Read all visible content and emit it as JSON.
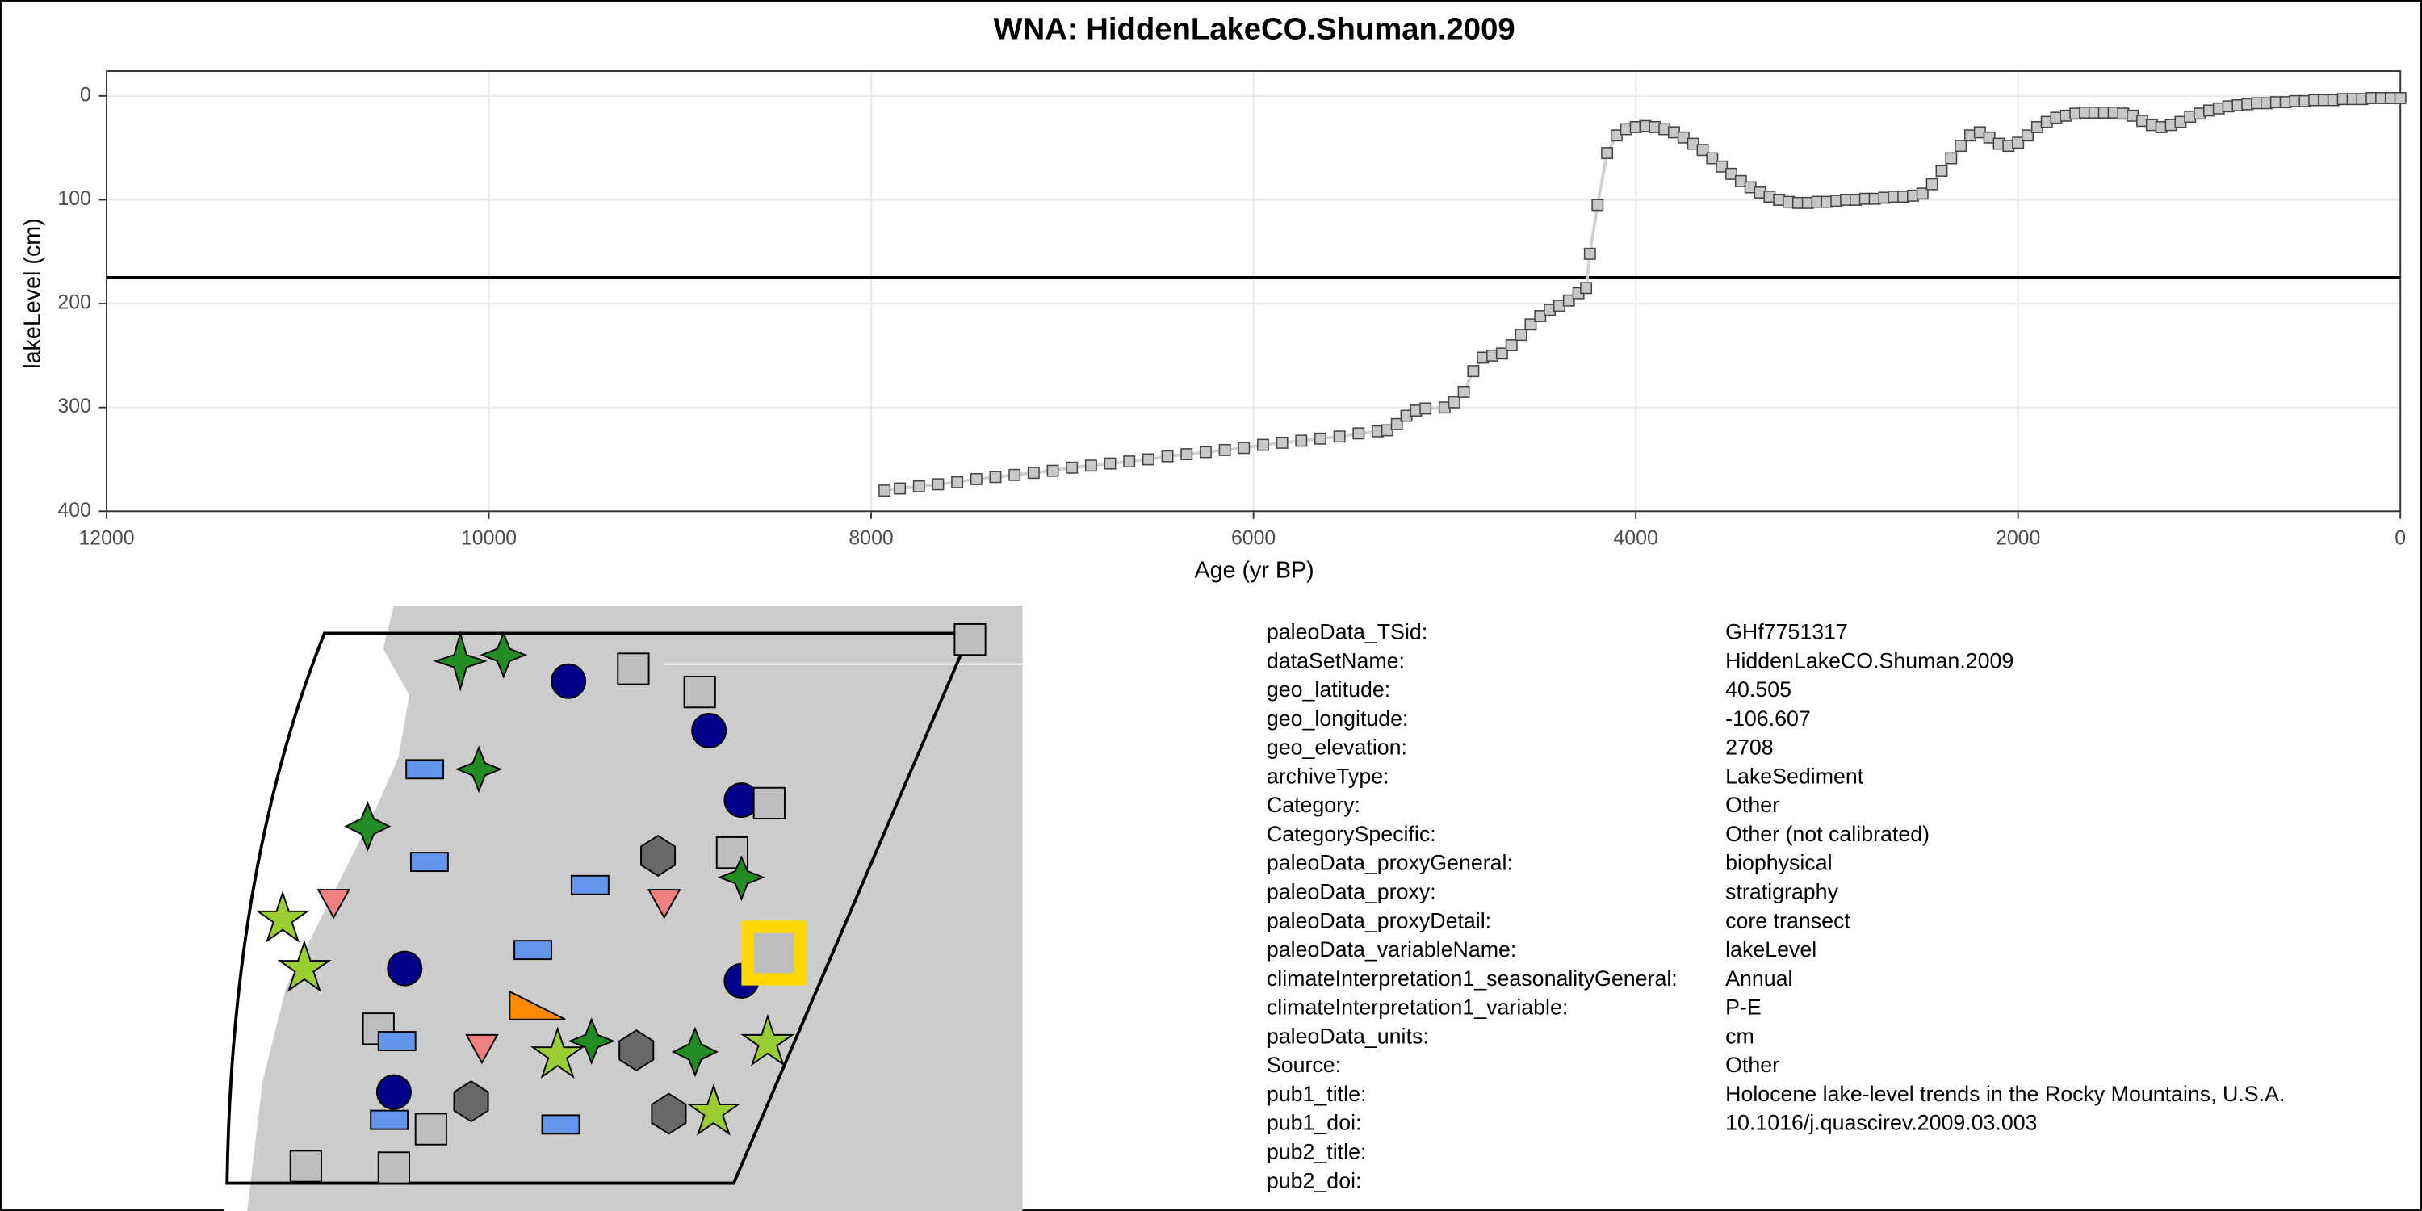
{
  "chart_data": {
    "type": "line",
    "title": "WNA: HiddenLakeCO.Shuman.2009",
    "xlabel": "Age (yr BP)",
    "ylabel": "lakeLevel (cm)",
    "xlim": [
      12000,
      0
    ],
    "ylim": [
      400,
      -24
    ],
    "xticks": [
      12000,
      10000,
      8000,
      6000,
      4000,
      2000,
      0
    ],
    "yticks": [
      0,
      100,
      200,
      300,
      400
    ],
    "grid": true,
    "hline": 175,
    "x": [
      7930,
      7850,
      7750,
      7650,
      7550,
      7450,
      7350,
      7250,
      7150,
      7050,
      6950,
      6850,
      6750,
      6650,
      6550,
      6450,
      6350,
      6250,
      6150,
      6050,
      5950,
      5850,
      5750,
      5650,
      5550,
      5450,
      5350,
      5300,
      5250,
      5200,
      5150,
      5100,
      5000,
      4950,
      4900,
      4850,
      4800,
      4750,
      4700,
      4650,
      4600,
      4550,
      4500,
      4450,
      4400,
      4350,
      4300,
      4260,
      4240,
      4200,
      4150,
      4100,
      4050,
      4000,
      3950,
      3900,
      3850,
      3800,
      3750,
      3700,
      3650,
      3600,
      3550,
      3500,
      3450,
      3400,
      3350,
      3300,
      3250,
      3200,
      3150,
      3100,
      3050,
      3000,
      2950,
      2900,
      2850,
      2800,
      2750,
      2700,
      2650,
      2600,
      2550,
      2500,
      2450,
      2400,
      2350,
      2300,
      2250,
      2200,
      2150,
      2100,
      2050,
      2000,
      1950,
      1900,
      1850,
      1800,
      1750,
      1700,
      1650,
      1600,
      1550,
      1500,
      1450,
      1400,
      1350,
      1300,
      1250,
      1200,
      1150,
      1100,
      1050,
      1000,
      950,
      900,
      850,
      800,
      750,
      700,
      650,
      600,
      550,
      500,
      450,
      400,
      350,
      300,
      250,
      200,
      150,
      100,
      50,
      0
    ],
    "series": [
      {
        "name": "lakeLevel",
        "color": "#c8c8c8",
        "values": [
          380,
          378,
          376,
          374,
          372,
          369,
          367,
          365,
          363,
          361,
          358,
          356,
          354,
          352,
          350,
          347,
          345,
          343,
          341,
          339,
          336,
          334,
          332,
          330,
          328,
          325,
          323,
          322,
          316,
          308,
          303,
          301,
          300,
          295,
          285,
          265,
          252,
          250,
          248,
          240,
          230,
          220,
          212,
          206,
          202,
          197,
          190,
          185,
          152,
          105,
          55,
          38,
          32,
          30,
          29,
          30,
          32,
          35,
          40,
          46,
          52,
          60,
          68,
          75,
          82,
          88,
          93,
          97,
          100,
          102,
          103,
          103,
          102,
          102,
          101,
          100,
          100,
          99,
          99,
          98,
          97,
          97,
          96,
          94,
          85,
          72,
          60,
          48,
          38,
          35,
          40,
          46,
          48,
          45,
          38,
          30,
          25,
          21,
          19,
          17,
          16,
          16,
          16,
          16,
          17,
          19,
          24,
          28,
          30,
          28,
          25,
          20,
          17,
          14,
          12,
          10,
          9,
          8,
          7,
          7,
          6,
          6,
          5,
          5,
          4,
          4,
          4,
          3,
          3,
          3,
          2,
          2,
          2,
          2
        ]
      }
    ]
  },
  "metadata": [
    [
      "paleoData_TSid:",
      "GHf7751317"
    ],
    [
      "dataSetName:",
      "HiddenLakeCO.Shuman.2009"
    ],
    [
      "geo_latitude:",
      "40.505"
    ],
    [
      "geo_longitude:",
      "-106.607"
    ],
    [
      "geo_elevation:",
      "2708"
    ],
    [
      "archiveType:",
      "LakeSediment"
    ],
    [
      "Category:",
      "Other"
    ],
    [
      "CategorySpecific:",
      "Other (not calibrated)"
    ],
    [
      "paleoData_proxyGeneral:",
      "biophysical"
    ],
    [
      "paleoData_proxy:",
      "stratigraphy"
    ],
    [
      "paleoData_proxyDetail:",
      "core transect"
    ],
    [
      "paleoData_variableName:",
      "lakeLevel"
    ],
    [
      "climateInterpretation1_seasonalityGeneral:",
      "Annual"
    ],
    [
      "climateInterpretation1_variable:",
      "P-E"
    ],
    [
      "paleoData_units:",
      "cm"
    ],
    [
      "Source:",
      "Other"
    ],
    [
      "pub1_title:",
      "Holocene lake-level trends in the Rocky Mountains, U.S.A."
    ],
    [
      "pub1_doi:",
      "10.1016/j.quascirev.2009.03.003"
    ],
    [
      "pub2_title:"
    ],
    [
      "pub2_doi:"
    ]
  ]
}
